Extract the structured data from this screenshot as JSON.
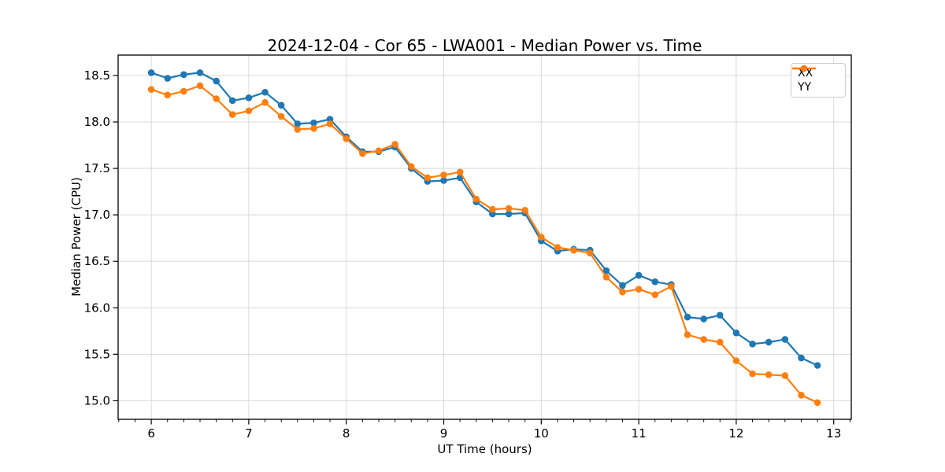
{
  "chart_data": {
    "type": "line",
    "title": "2024-12-04 - Cor 65 - LWA001 - Median Power vs. Time",
    "xlabel": "UT Time (hours)",
    "ylabel": "Median Power (CPU)",
    "xlim": [
      5.66,
      13.18
    ],
    "ylim": [
      14.8,
      18.72
    ],
    "xticks": [
      6,
      7,
      8,
      9,
      10,
      11,
      12,
      13
    ],
    "xtick_labels": [
      "6",
      "7",
      "8",
      "9",
      "10",
      "11",
      "12",
      "13"
    ],
    "yticks": [
      15.0,
      15.5,
      16.0,
      16.5,
      17.0,
      17.5,
      18.0,
      18.5
    ],
    "ytick_labels": [
      "15.0",
      "15.5",
      "16.0",
      "16.5",
      "17.0",
      "17.5",
      "18.0",
      "18.5"
    ],
    "x_minor_tick_interval": 0.1667,
    "grid": true,
    "grid_color": "#d9d9d9",
    "background": "#ffffff",
    "legend_position": "upper right",
    "x": [
      6.0,
      6.167,
      6.333,
      6.5,
      6.667,
      6.833,
      7.0,
      7.167,
      7.333,
      7.5,
      7.667,
      7.833,
      8.0,
      8.167,
      8.333,
      8.5,
      8.667,
      8.833,
      9.0,
      9.167,
      9.333,
      9.5,
      9.667,
      9.833,
      10.0,
      10.167,
      10.333,
      10.5,
      10.667,
      10.833,
      11.0,
      11.167,
      11.333,
      11.5,
      11.667,
      11.833,
      12.0,
      12.167,
      12.333,
      12.5,
      12.667,
      12.833
    ],
    "series": [
      {
        "name": "XX",
        "color": "#1f77b4",
        "values": [
          18.53,
          18.47,
          18.51,
          18.53,
          18.44,
          18.23,
          18.26,
          18.32,
          18.18,
          17.98,
          17.99,
          18.03,
          17.84,
          17.68,
          17.68,
          17.73,
          17.5,
          17.36,
          17.37,
          17.4,
          17.14,
          17.01,
          17.01,
          17.02,
          16.72,
          16.61,
          16.63,
          16.62,
          16.4,
          16.24,
          16.35,
          16.28,
          16.25,
          15.9,
          15.88,
          15.92,
          15.73,
          15.61,
          15.63,
          15.66,
          15.46,
          15.38
        ]
      },
      {
        "name": "YY",
        "color": "#ff7f0e",
        "values": [
          18.35,
          18.29,
          18.33,
          18.39,
          18.25,
          18.08,
          18.12,
          18.21,
          18.06,
          17.92,
          17.93,
          17.98,
          17.82,
          17.66,
          17.69,
          17.76,
          17.52,
          17.4,
          17.43,
          17.46,
          17.17,
          17.06,
          17.07,
          17.05,
          16.76,
          16.65,
          16.62,
          16.59,
          16.33,
          16.17,
          16.2,
          16.14,
          16.23,
          15.71,
          15.66,
          15.63,
          15.43,
          15.29,
          15.28,
          15.27,
          15.06,
          14.98
        ]
      }
    ]
  }
}
